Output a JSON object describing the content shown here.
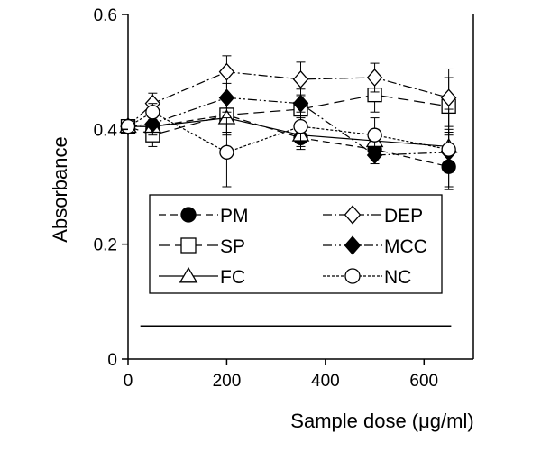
{
  "chart_data": {
    "type": "line",
    "xlabel": "Sample dose (μg/ml)",
    "ylabel": "Absorbance",
    "xlim": [
      0,
      700
    ],
    "ylim": [
      0,
      0.6
    ],
    "xticks": [
      0,
      200,
      400,
      600
    ],
    "yticks": [
      0,
      0.2,
      0.4,
      0.6
    ],
    "ytick_labels": [
      "0",
      "0.2",
      "0.4",
      "0.6"
    ],
    "legend_position": "center",
    "series": [
      {
        "name": "PM",
        "marker": "circle",
        "fill": "#000000",
        "dash": "8,5",
        "points": [
          [
            0,
            0.405
          ],
          [
            50,
            0.405
          ],
          [
            200,
            0.425
          ],
          [
            350,
            0.385
          ],
          [
            500,
            0.365
          ],
          [
            650,
            0.335
          ]
        ],
        "errors": [
          0.006,
          0.012,
          0.03,
          0.02,
          0.02,
          0.035
        ]
      },
      {
        "name": "SP",
        "marker": "square",
        "fill": "#ffffff",
        "dash": "12,6",
        "points": [
          [
            0,
            0.405
          ],
          [
            50,
            0.39
          ],
          [
            200,
            0.425
          ],
          [
            350,
            0.435
          ],
          [
            500,
            0.46
          ],
          [
            650,
            0.44
          ]
        ],
        "errors": [
          0.006,
          0.02,
          0.03,
          0.025,
          0.03,
          0.05
        ]
      },
      {
        "name": "FC",
        "marker": "triangle",
        "fill": "#ffffff",
        "dash": "",
        "points": [
          [
            0,
            0.405
          ],
          [
            50,
            0.405
          ],
          [
            200,
            0.42
          ],
          [
            350,
            0.39
          ],
          [
            500,
            0.38
          ],
          [
            650,
            0.37
          ]
        ],
        "errors": [
          0.006,
          0.015,
          0.03,
          0.02,
          0.02,
          0.03
        ]
      },
      {
        "name": "DEP",
        "marker": "diamond",
        "fill": "#ffffff",
        "dash": "10,3,2,3",
        "points": [
          [
            0,
            0.405
          ],
          [
            50,
            0.445
          ],
          [
            200,
            0.5
          ],
          [
            350,
            0.487
          ],
          [
            500,
            0.49
          ],
          [
            650,
            0.455
          ]
        ],
        "errors": [
          0.006,
          0.018,
          0.028,
          0.03,
          0.025,
          0.05
        ]
      },
      {
        "name": "MCC",
        "marker": "diamond",
        "fill": "#000000",
        "dash": "10,3,2,3,2,3",
        "points": [
          [
            0,
            0.405
          ],
          [
            50,
            0.41
          ],
          [
            200,
            0.455
          ],
          [
            350,
            0.445
          ],
          [
            500,
            0.355
          ],
          [
            650,
            0.36
          ]
        ],
        "errors": [
          0.006,
          0.015,
          0.025,
          0.025,
          0.015,
          0.035
        ]
      },
      {
        "name": "NC",
        "marker": "circle",
        "fill": "#ffffff",
        "dash": "3,2",
        "points": [
          [
            0,
            0.405
          ],
          [
            50,
            0.43
          ],
          [
            200,
            0.36
          ],
          [
            350,
            0.405
          ],
          [
            500,
            0.39
          ],
          [
            650,
            0.365
          ]
        ],
        "errors": [
          0.006,
          0.015,
          0.06,
          0.025,
          0.03,
          0.07
        ]
      }
    ],
    "reference_line": {
      "x_start": 25,
      "x_end": 655,
      "y": 0.057
    }
  }
}
